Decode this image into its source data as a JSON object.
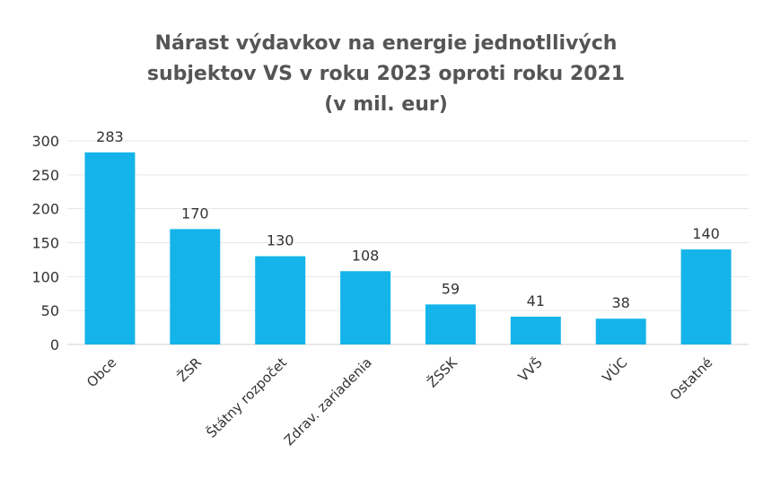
{
  "chart_data": {
    "type": "bar",
    "title_lines": [
      "Nárast výdavkov na energie jednotllivých",
      "subjektov VS v roku 2023 oproti roku 2021",
      "(v mil. eur)"
    ],
    "categories": [
      "Obce",
      "ŽSR",
      "Štátny rozpočet",
      "Zdrav. zariadenia",
      "ŽSSK",
      "VVŠ",
      "VÚC",
      "Ostatné"
    ],
    "values": [
      283,
      170,
      130,
      108,
      59,
      41,
      38,
      140
    ],
    "xlabel": "",
    "ylabel": "",
    "ylim": [
      0,
      300
    ],
    "yticks": [
      0,
      50,
      100,
      150,
      200,
      250,
      300
    ],
    "grid": true,
    "legend": "none",
    "bar_color": "#14B4EA"
  }
}
